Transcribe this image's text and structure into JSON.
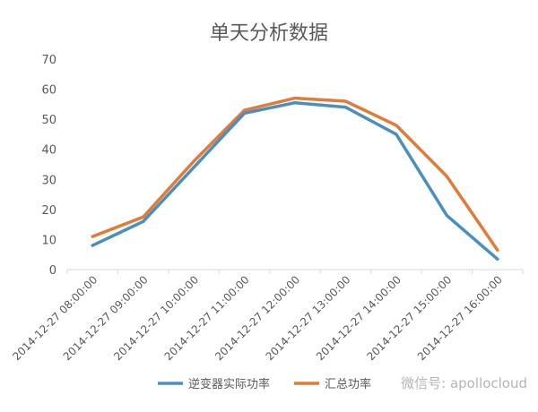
{
  "chart_data": {
    "type": "line",
    "title": "单天分析数据",
    "categories": [
      "2014-12-27 08:00:00",
      "2014-12-27 09:00:00",
      "2014-12-27 10:00:00",
      "2014-12-27 11:00:00",
      "2014-12-27 12:00:00",
      "2014-12-27 13:00:00",
      "2014-12-27 14:00:00",
      "2014-12-27 15:00:00",
      "2014-12-27 16:00:00"
    ],
    "series": [
      {
        "name": "逆变器实际功率",
        "color": "#4a8fc1",
        "values": [
          8,
          16,
          34,
          52,
          55.5,
          54,
          45,
          18,
          3.5
        ]
      },
      {
        "name": "汇总功率",
        "color": "#e07b39",
        "values": [
          11,
          17.5,
          36,
          53,
          57,
          56,
          48,
          31,
          6.5
        ]
      }
    ],
    "ylim": [
      0,
      70
    ],
    "yticks": [
      0,
      10,
      20,
      30,
      40,
      50,
      60,
      70
    ],
    "grid": false,
    "legend": "bottom",
    "xlabel": "",
    "ylabel": ""
  },
  "watermark": "微信号: apollocloud"
}
